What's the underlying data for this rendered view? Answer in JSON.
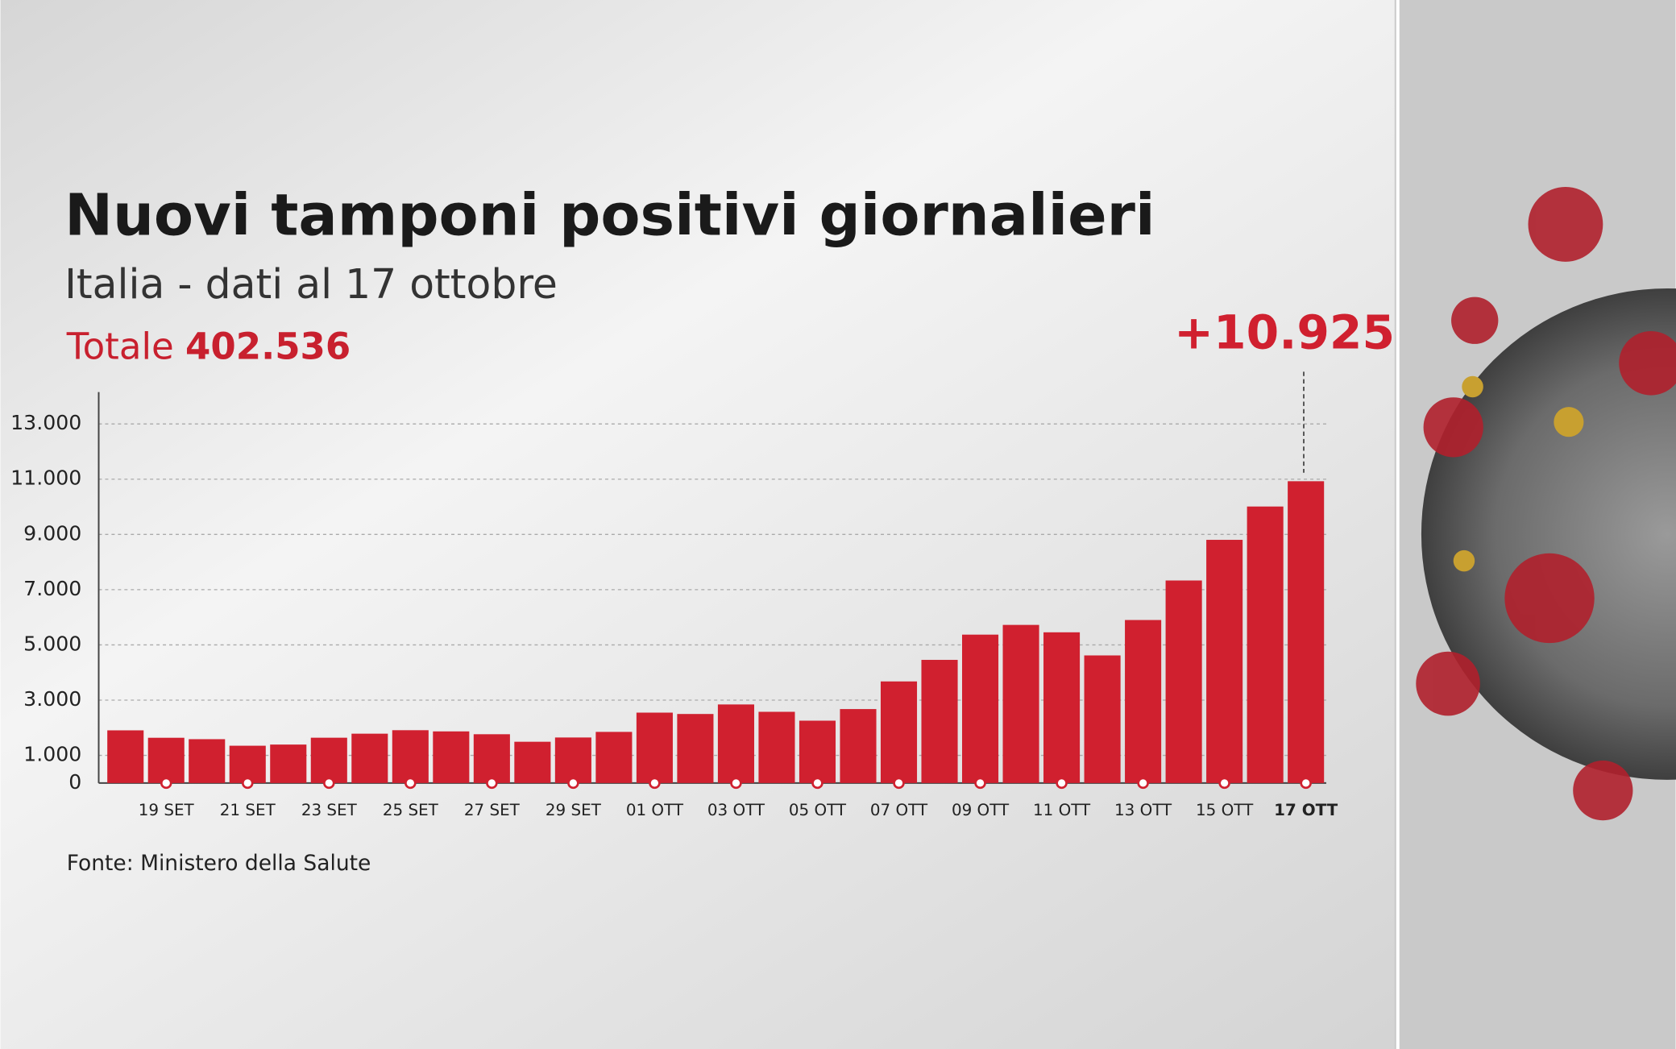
{
  "chart_data": {
    "type": "bar",
    "title": "Nuovi tamponi positivi giornalieri",
    "subtitle": "Italia - dati al 17 ottobre",
    "total": {
      "label": "Totale",
      "value": "402.536"
    },
    "source": "Fonte: Ministero della Salute",
    "categories": [
      null,
      "19 SET",
      null,
      "21 SET",
      null,
      "23 SET",
      null,
      "25 SET",
      null,
      "27 SET",
      null,
      "29 SET",
      null,
      "01 OTT",
      null,
      "03 OTT",
      null,
      "05 OTT",
      null,
      "07 OTT",
      null,
      "09 OTT",
      null,
      "11 OTT",
      null,
      "13 OTT",
      null,
      "15 OTT",
      null,
      "17 OTT"
    ],
    "values": [
      1907,
      1638,
      1587,
      1350,
      1392,
      1640,
      1786,
      1912,
      1869,
      1766,
      1494,
      1648,
      1851,
      2548,
      2499,
      2844,
      2578,
      2257,
      2677,
      3678,
      4458,
      5372,
      5724,
      5456,
      4619,
      5901,
      7332,
      8804,
      10010,
      10925
    ],
    "value_labels": [
      null,
      null,
      null,
      null,
      null,
      null,
      null,
      null,
      null,
      null,
      null,
      null,
      null,
      null,
      null,
      null,
      null,
      null,
      null,
      null,
      null,
      null,
      null,
      null,
      null,
      null,
      null,
      null,
      null,
      "+10.925"
    ],
    "color": "#d0202f",
    "ylim": [
      0,
      14000
    ],
    "yticks": [
      0,
      {
        "value": 1000,
        "label": "1.000"
      },
      {
        "value": 3000,
        "label": "3.000"
      },
      {
        "value": 5000,
        "label": "5.000"
      },
      {
        "value": 7000,
        "label": "7.000"
      },
      {
        "value": 9000,
        "label": "9.000"
      },
      {
        "value": 11000,
        "label": "11.000"
      },
      {
        "value": 13000,
        "label": "13.000"
      }
    ],
    "grid": true
  }
}
